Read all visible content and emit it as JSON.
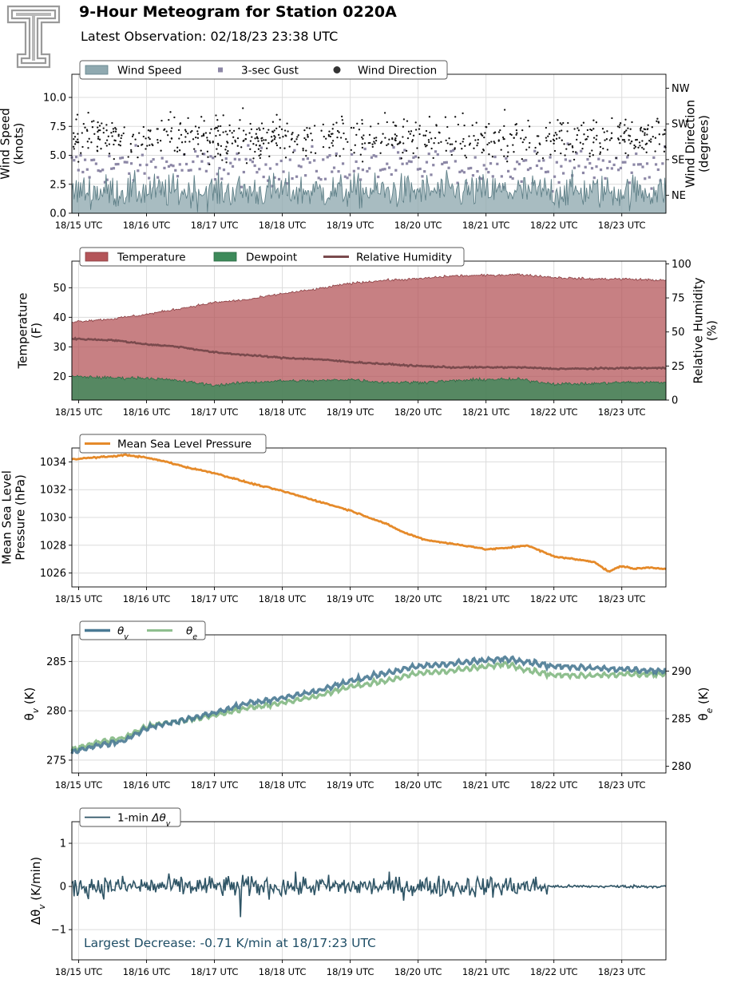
{
  "header": {
    "title": "9-Hour Meteogram for Station 0220A",
    "subtitle": "Latest Observation: 02/18/23 23:38 UTC"
  },
  "colors": {
    "wind_speed": "#8fa9b0",
    "gust": "#8c87a6",
    "direction": "#111111",
    "temperature": "#b45559",
    "dewpoint": "#3d8a5a",
    "rh": "#7a4a4d",
    "pressure": "#e58a2a",
    "theta_v": "#4a7a94",
    "theta_e": "#8fbf8f",
    "dtheta": "#2f5566",
    "annotation": "#1f4e66"
  },
  "chart_data": [
    {
      "id": "wind",
      "type": "area",
      "x_ticks": [
        "18/15 UTC",
        "18/16 UTC",
        "18/17 UTC",
        "18/18 UTC",
        "18/19 UTC",
        "18/20 UTC",
        "18/21 UTC",
        "18/22 UTC",
        "18/23 UTC"
      ],
      "xlim_hours": [
        14.9,
        23.65
      ],
      "ylabel": "Wind Speed\n(knots)",
      "ylim": [
        0,
        12
      ],
      "y_ticks": [
        "0.0",
        "2.5",
        "5.0",
        "7.5",
        "10.0"
      ],
      "y2label": "Wind Direction\n(degrees)",
      "y2_ticks": [
        "NE",
        "SE",
        "SW",
        "NW"
      ],
      "y2_tick_values": [
        45,
        135,
        225,
        315
      ],
      "y2lim": [
        0,
        350
      ],
      "legend": [
        "Wind Speed",
        "3-sec Gust",
        "Wind Direction"
      ],
      "series": [
        {
          "name": "Wind Speed",
          "kind": "area",
          "mean": 1.9,
          "spread": 1.6
        },
        {
          "name": "3-sec Gust",
          "kind": "squares",
          "mean": 4.0,
          "spread": 2.0
        },
        {
          "name": "Wind Direction",
          "kind": "dots",
          "mean_deg": 190,
          "spread_deg": 55
        }
      ]
    },
    {
      "id": "temp",
      "type": "area",
      "x_ticks": [
        "18/15 UTC",
        "18/16 UTC",
        "18/17 UTC",
        "18/18 UTC",
        "18/19 UTC",
        "18/20 UTC",
        "18/21 UTC",
        "18/22 UTC",
        "18/23 UTC"
      ],
      "ylabel": "Temperature\n(F)",
      "ylim": [
        12,
        59
      ],
      "y_ticks": [
        "20",
        "30",
        "40",
        "50"
      ],
      "y2label": "Relative Humidity\n(%)",
      "y2lim": [
        0,
        102
      ],
      "y2_ticks": [
        "0",
        "25",
        "50",
        "75",
        "100"
      ],
      "legend": [
        "Temperature",
        "Dewpoint",
        "Relative Humidity"
      ],
      "series": [
        {
          "name": "Temperature",
          "x": [
            14.9,
            15.5,
            16,
            16.5,
            17,
            17.5,
            18,
            18.5,
            19,
            19.5,
            20,
            20.5,
            21,
            21.5,
            22,
            22.5,
            23,
            23.65
          ],
          "y": [
            38.5,
            39.5,
            41,
            43,
            45,
            46,
            48,
            49.5,
            51.5,
            52.5,
            53,
            54,
            54.2,
            54.5,
            53.5,
            53,
            53,
            52.5
          ]
        },
        {
          "name": "Dewpoint",
          "x": [
            14.9,
            15.5,
            16,
            16.5,
            17,
            17.5,
            18,
            18.5,
            19,
            19.5,
            20,
            20.5,
            21,
            21.5,
            22,
            22.5,
            23,
            23.65
          ],
          "y": [
            20,
            19.5,
            19.5,
            18.5,
            17,
            18,
            18.5,
            18.5,
            19,
            18,
            18,
            18.5,
            19,
            19,
            17.5,
            17.5,
            18,
            18
          ]
        },
        {
          "name": "Relative Humidity",
          "x": [
            14.9,
            15.5,
            16,
            16.5,
            17,
            17.5,
            18,
            18.5,
            19,
            19.5,
            20,
            20.5,
            21,
            21.5,
            22,
            22.5,
            23,
            23.65
          ],
          "y": [
            45,
            44,
            41,
            39,
            35,
            33,
            31,
            30,
            28,
            26.5,
            25,
            24,
            24,
            24,
            23,
            23,
            23.5,
            23.5
          ]
        }
      ]
    },
    {
      "id": "pressure",
      "type": "line",
      "x_ticks": [
        "18/15 UTC",
        "18/16 UTC",
        "18/17 UTC",
        "18/18 UTC",
        "18/19 UTC",
        "18/20 UTC",
        "18/21 UTC",
        "18/22 UTC",
        "18/23 UTC"
      ],
      "ylabel": "Mean Sea Level\nPressure (hPa)",
      "ylim": [
        1025,
        1035
      ],
      "y_ticks": [
        "1026",
        "1028",
        "1030",
        "1032",
        "1034"
      ],
      "legend": [
        "Mean Sea Level Pressure"
      ],
      "series": [
        {
          "name": "Mean Sea Level Pressure",
          "x": [
            14.9,
            15.2,
            15.5,
            15.7,
            16,
            16.3,
            16.6,
            17,
            17.5,
            18,
            18.5,
            19,
            19.5,
            19.8,
            20.1,
            20.5,
            20.8,
            21,
            21.3,
            21.6,
            21.8,
            22,
            22.3,
            22.6,
            22.8,
            23,
            23.2,
            23.4,
            23.65
          ],
          "y": [
            1034.2,
            1034.3,
            1034.4,
            1034.5,
            1034.3,
            1034,
            1033.6,
            1033.2,
            1032.5,
            1031.9,
            1031.2,
            1030.5,
            1029.6,
            1028.9,
            1028.4,
            1028.1,
            1027.9,
            1027.7,
            1027.8,
            1028.0,
            1027.6,
            1027.2,
            1027,
            1026.8,
            1026.1,
            1026.5,
            1026.3,
            1026.4,
            1026.3
          ]
        }
      ]
    },
    {
      "id": "theta",
      "type": "line",
      "x_ticks": [
        "18/15 UTC",
        "18/16 UTC",
        "18/17 UTC",
        "18/18 UTC",
        "18/19 UTC",
        "18/20 UTC",
        "18/21 UTC",
        "18/22 UTC",
        "18/23 UTC"
      ],
      "ylabel": "θv (K)",
      "ylim": [
        273.7,
        287.7
      ],
      "y_ticks": [
        "275",
        "280",
        "285"
      ],
      "y2label": "θe (K)",
      "y2lim": [
        279.3,
        293.8
      ],
      "y2_ticks": [
        "280",
        "285",
        "290"
      ],
      "legend": [
        "θv",
        "θe"
      ],
      "series": [
        {
          "name": "θv",
          "x": [
            14.9,
            15.3,
            15.7,
            16,
            16.5,
            17,
            17.5,
            18,
            18.5,
            19,
            19.5,
            20,
            20.5,
            21,
            21.3,
            21.6,
            22,
            22.5,
            23,
            23.65
          ],
          "y": [
            275.8,
            276.5,
            277,
            278.3,
            279,
            279.8,
            280.8,
            281.3,
            282,
            283,
            283.8,
            284.5,
            284.8,
            285.1,
            285.3,
            285,
            284.5,
            284.4,
            284.2,
            284.0
          ]
        },
        {
          "name": "θe",
          "x": [
            14.9,
            15.3,
            15.7,
            16,
            16.5,
            17,
            17.5,
            18,
            18.5,
            19,
            19.5,
            20,
            20.5,
            21,
            21.3,
            21.6,
            22,
            22.5,
            23,
            23.65
          ],
          "y": [
            282.0,
            282.8,
            283.3,
            284.5,
            285.0,
            285.6,
            286.4,
            286.9,
            287.6,
            288.6,
            289.2,
            290.0,
            290.3,
            290.7,
            291.0,
            290.4,
            289.8,
            289.8,
            289.9,
            289.9
          ]
        }
      ]
    },
    {
      "id": "dtheta",
      "type": "line",
      "x_ticks": [
        "18/15 UTC",
        "18/16 UTC",
        "18/17 UTC",
        "18/18 UTC",
        "18/19 UTC",
        "18/20 UTC",
        "18/21 UTC",
        "18/22 UTC",
        "18/23 UTC"
      ],
      "ylabel": "Δθv (K/min)",
      "ylim": [
        -1.7,
        1.5
      ],
      "y_ticks": [
        "−1",
        "0",
        "1"
      ],
      "legend": [
        "1-min Δθv"
      ],
      "annotation": "Largest Decrease: -0.71 K/min at 18/17:23 UTC",
      "series": [
        {
          "name": "1-min Δθv",
          "amplitude": 0.28,
          "calm_after_hour": 21.9,
          "min_value": -0.71,
          "min_at_hour": 17.38
        }
      ]
    }
  ]
}
